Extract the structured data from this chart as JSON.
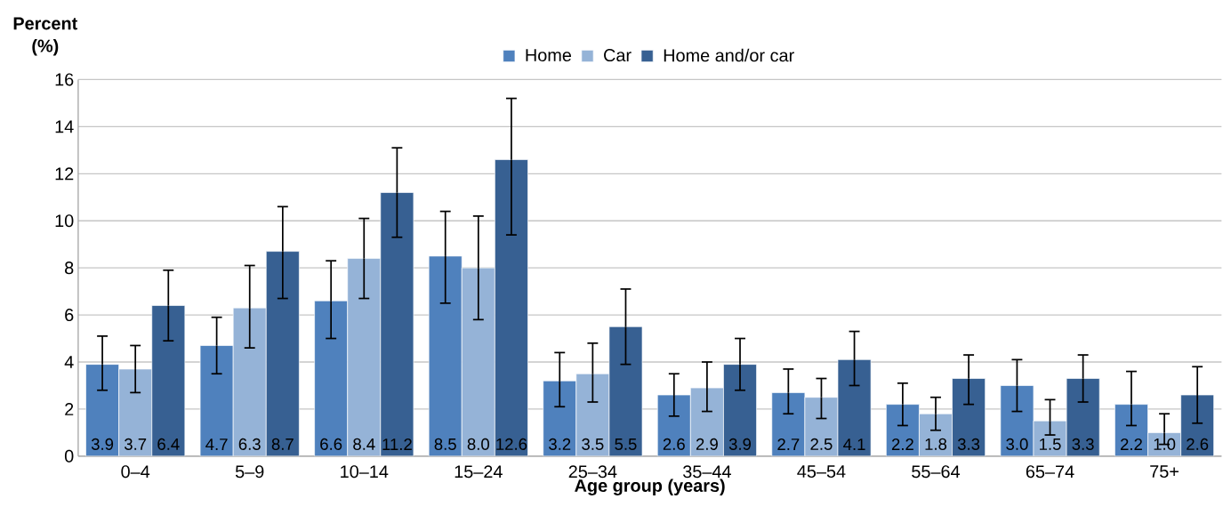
{
  "chart_data": {
    "type": "bar",
    "ylabel": "Percent (%)",
    "xlabel": "Age group (years)",
    "categories": [
      "0–4",
      "5–9",
      "10–14",
      "15–24",
      "25–34",
      "35–44",
      "45–54",
      "55–64",
      "65–74",
      "75+"
    ],
    "series": [
      {
        "name": "Home",
        "color": "#4f81bd",
        "values": [
          3.9,
          4.7,
          6.6,
          8.5,
          3.2,
          2.6,
          2.7,
          2.2,
          3.0,
          2.2
        ],
        "value_labels": [
          "3.9",
          "4.7",
          "6.6",
          "8.5",
          "3.2",
          "2.6",
          "2.7",
          "2.2",
          "3.0",
          "2.2"
        ],
        "errors": [
          [
            2.8,
            5.1
          ],
          [
            3.5,
            5.9
          ],
          [
            5.0,
            8.3
          ],
          [
            6.5,
            10.4
          ],
          [
            2.1,
            4.4
          ],
          [
            1.7,
            3.5
          ],
          [
            1.8,
            3.7
          ],
          [
            1.3,
            3.1
          ],
          [
            1.9,
            4.1
          ],
          [
            1.3,
            3.6
          ]
        ]
      },
      {
        "name": "Car",
        "color": "#95b3d7",
        "values": [
          3.7,
          6.3,
          8.4,
          8.0,
          3.5,
          2.9,
          2.5,
          1.8,
          1.5,
          1.0
        ],
        "value_labels": [
          "3.7",
          "6.3",
          "8.4",
          "8.0",
          "3.5",
          "2.9",
          "2.5",
          "1.8",
          "1.5",
          "1.0"
        ],
        "errors": [
          [
            2.7,
            4.7
          ],
          [
            4.6,
            8.1
          ],
          [
            6.7,
            10.1
          ],
          [
            5.8,
            10.2
          ],
          [
            2.3,
            4.8
          ],
          [
            1.9,
            4.0
          ],
          [
            1.6,
            3.3
          ],
          [
            1.1,
            2.5
          ],
          [
            0.9,
            2.4
          ],
          [
            0.5,
            1.8
          ]
        ]
      },
      {
        "name": "Home and/or car",
        "color": "#376092",
        "values": [
          6.4,
          8.7,
          11.2,
          12.6,
          5.5,
          3.9,
          4.1,
          3.3,
          3.3,
          2.6
        ],
        "value_labels": [
          "6.4",
          "8.7",
          "11.2",
          "12.6",
          "5.5",
          "3.9",
          "4.1",
          "3.3",
          "3.3",
          "2.6"
        ],
        "errors": [
          [
            4.9,
            7.9
          ],
          [
            6.7,
            10.6
          ],
          [
            9.3,
            13.1
          ],
          [
            9.4,
            15.2
          ],
          [
            3.9,
            7.1
          ],
          [
            2.8,
            5.0
          ],
          [
            3.0,
            5.3
          ],
          [
            2.2,
            4.3
          ],
          [
            2.3,
            4.3
          ],
          [
            1.4,
            3.8
          ]
        ]
      }
    ],
    "ylim": [
      0,
      16
    ],
    "yticks": [
      0,
      2,
      4,
      6,
      8,
      10,
      12,
      14,
      16
    ],
    "grid": "y",
    "legend": "top"
  }
}
